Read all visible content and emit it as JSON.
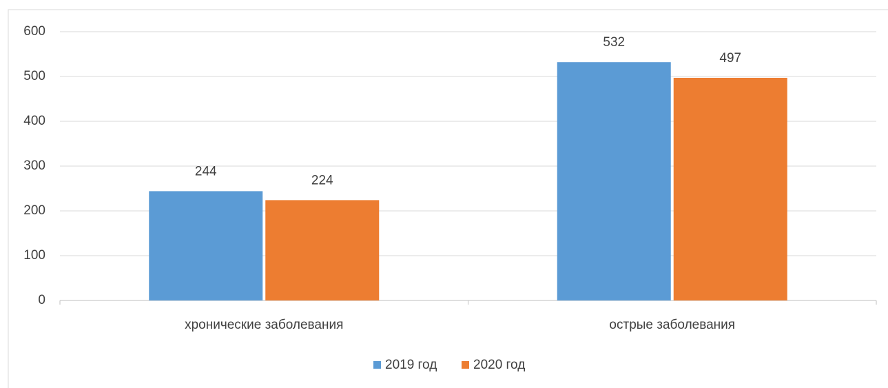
{
  "chart_data": {
    "type": "bar",
    "categories": [
      "хронические заболевания",
      "острые заболевания"
    ],
    "series": [
      {
        "name": "2019 год",
        "color": "#5b9bd5",
        "values": [
          244,
          532
        ]
      },
      {
        "name": "2020 год",
        "color": "#ed7d31",
        "values": [
          224,
          497
        ]
      }
    ],
    "ylim": [
      0,
      600
    ],
    "yticks": [
      0,
      100,
      200,
      300,
      400,
      500,
      600
    ],
    "grid": true,
    "legend": "bottom"
  }
}
